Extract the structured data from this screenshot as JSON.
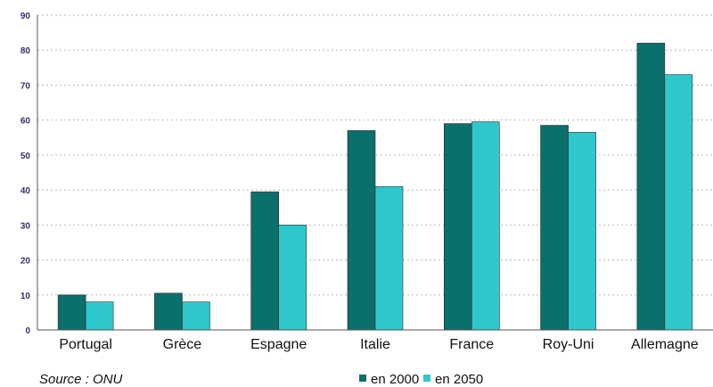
{
  "chart_data": {
    "type": "bar",
    "title": "",
    "xlabel": "",
    "ylabel": "",
    "categories": [
      "Portugal",
      "Grèce",
      "Espagne",
      "Italie",
      "France",
      "Roy-Uni",
      "Allemagne"
    ],
    "series": [
      {
        "name": "en 2000",
        "color": "#0b6f6b",
        "values": [
          10,
          10.5,
          39.5,
          57,
          59,
          58.5,
          82
        ]
      },
      {
        "name": "en 2050",
        "color": "#2ec8cc",
        "values": [
          8,
          8,
          30,
          41,
          59.5,
          56.5,
          73
        ]
      }
    ],
    "ylim": [
      0,
      90
    ],
    "yticks": [
      0,
      10,
      20,
      30,
      40,
      50,
      60,
      70,
      80,
      90
    ],
    "grid": true,
    "legend": "bottom-center",
    "source": "Source : ONU"
  }
}
